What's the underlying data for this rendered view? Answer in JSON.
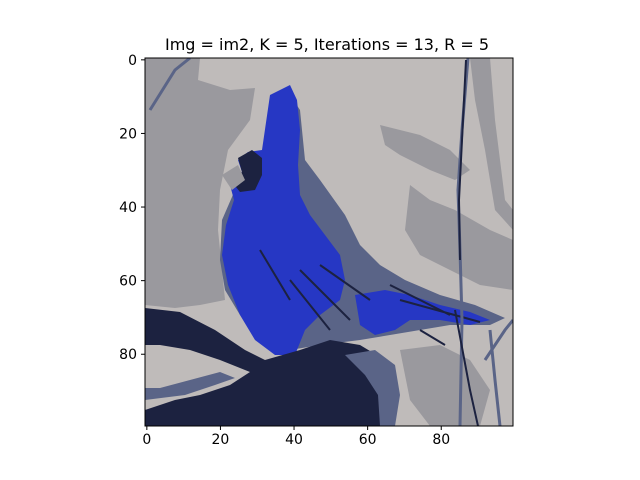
{
  "chart_data": {
    "type": "heatmap",
    "title": "Img = im2, K = 5, Iterations = 13, R = 5",
    "xlabel": "",
    "ylabel": "",
    "xlim": [
      0,
      100
    ],
    "ylim": [
      100,
      0
    ],
    "x_ticks": [
      0,
      20,
      40,
      60,
      80
    ],
    "y_ticks": [
      0,
      20,
      40,
      60,
      80
    ],
    "palette": [
      "#bfbbba",
      "#9a999e",
      "#5a6487",
      "#1c2240",
      "#2637c4"
    ],
    "regions": [
      {
        "label": "background-light",
        "color_index": 0,
        "x0": 0,
        "y0": 0,
        "x1": 100,
        "y1": 100
      },
      {
        "label": "background-mid",
        "color_index": 1,
        "x0": 0,
        "y0": 5,
        "x1": 20,
        "y1": 72
      },
      {
        "label": "background-mid-right",
        "color_index": 1,
        "x0": 70,
        "y0": 35,
        "x1": 100,
        "y1": 65
      },
      {
        "label": "bird-body",
        "color_index": 2,
        "x0": 22,
        "y0": 25,
        "x1": 75,
        "y1": 80
      },
      {
        "label": "bird-head",
        "color_index": 4,
        "x0": 22,
        "y0": 8,
        "x1": 42,
        "y1": 45
      },
      {
        "label": "bird-chest",
        "color_index": 4,
        "x0": 20,
        "y0": 40,
        "x1": 50,
        "y1": 80
      },
      {
        "label": "branch",
        "color_index": 3,
        "x0": 0,
        "y0": 68,
        "x1": 65,
        "y1": 100
      }
    ]
  }
}
